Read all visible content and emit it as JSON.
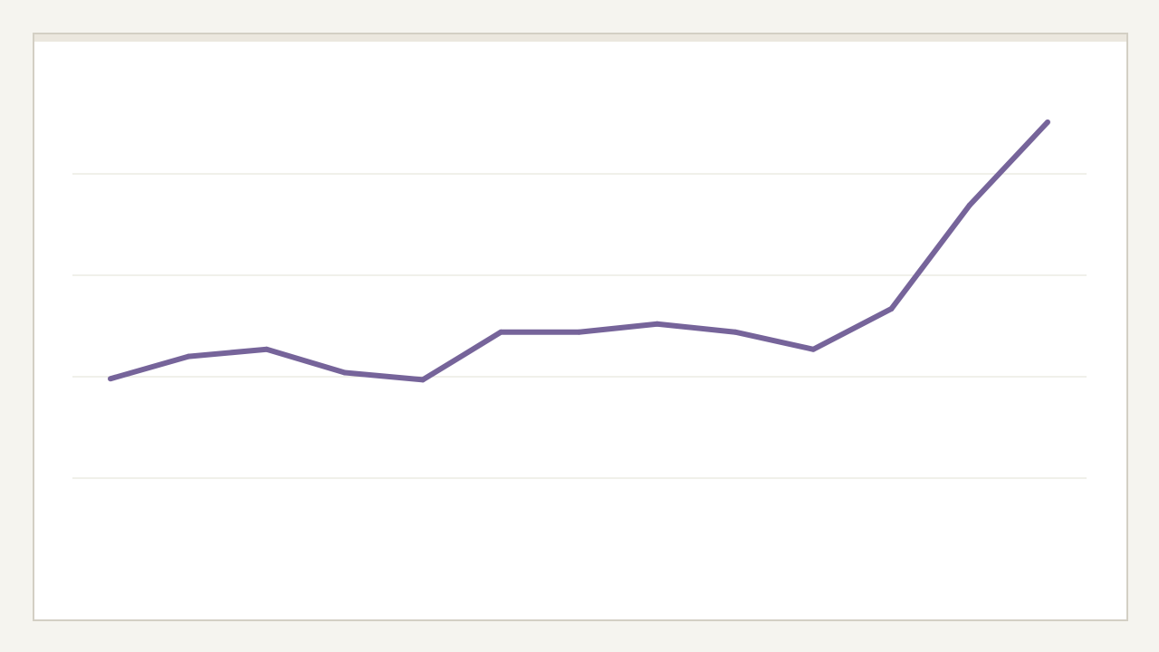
{
  "chart_data": {
    "type": "line",
    "title": "",
    "xlabel": "",
    "ylabel": "",
    "x": [
      1,
      2,
      3,
      4,
      5,
      6,
      7,
      8,
      9,
      10,
      11,
      12,
      13
    ],
    "series": [
      {
        "values": [
          1.98,
          2.2,
          2.27,
          2.04,
          1.97,
          2.44,
          2.44,
          2.52,
          2.44,
          2.27,
          2.67,
          3.69,
          4.51
        ]
      }
    ],
    "ylim": [
      0,
      5
    ],
    "gridlines": [
      1,
      2,
      3,
      4
    ],
    "grid": true,
    "legend": "none",
    "colors": {
      "line": "#76649a",
      "grid": "#e2e0d4",
      "background": "#ffffff",
      "page": "#f5f4ef",
      "border": "#d3cfc4"
    }
  }
}
